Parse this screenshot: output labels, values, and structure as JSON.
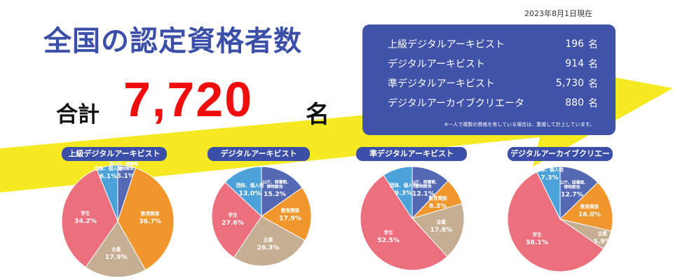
{
  "date": "2023年8月1日現在",
  "title": "全国の認定資格者数",
  "total": {
    "label": "合計",
    "value": "7,720",
    "unit": "名"
  },
  "summary": {
    "rows": [
      {
        "name": "上級デジタルアーキビスト",
        "count": "196",
        "unit": "名"
      },
      {
        "name": "デジタルアーキビスト",
        "count": "914",
        "unit": "名"
      },
      {
        "name": "準デジタルアーキビスト",
        "count": "5,730",
        "unit": "名"
      },
      {
        "name": "デジタルアーカイブクリエータ",
        "count": "880",
        "unit": "名"
      }
    ],
    "note": "※一人で複数の資格を有している場合は、重複して計上しています。"
  },
  "colors": {
    "官公庁、図書館、博物館他": "#5468b4",
    "教育関係": "#f0962c",
    "企業": "#c6ae92",
    "学生": "#ec6f7e",
    "団体、個人他": "#4ba2d8",
    "arrow": "#f5ea21",
    "title": "#3b4ea8",
    "total": "#f00d0d"
  },
  "chart_data": [
    {
      "type": "pie",
      "title": "上級デジタルアーキビスト",
      "unit": "%",
      "slices": [
        {
          "label": "官公庁、図書館、博物館他",
          "value": 5.1
        },
        {
          "label": "教育関係",
          "value": 36.7
        },
        {
          "label": "企業",
          "value": 17.9
        },
        {
          "label": "学生",
          "value": 34.2
        },
        {
          "label": "団体、個人他",
          "value": 6.1
        }
      ]
    },
    {
      "type": "pie",
      "title": "デジタルアーキビスト",
      "unit": "%",
      "slices": [
        {
          "label": "官公庁、図書館、博物館他",
          "value": 15.2
        },
        {
          "label": "教育関係",
          "value": 17.9
        },
        {
          "label": "企業",
          "value": 26.3
        },
        {
          "label": "学生",
          "value": 27.6
        },
        {
          "label": "団体、個人他",
          "value": 13.0
        }
      ]
    },
    {
      "type": "pie",
      "title": "準デジタルアーキビスト",
      "unit": "%",
      "slices": [
        {
          "label": "官公庁、図書館、博物館他",
          "value": 12.1
        },
        {
          "label": "教育関係",
          "value": 8.3
        },
        {
          "label": "企業",
          "value": 17.8
        },
        {
          "label": "学生",
          "value": 52.5
        },
        {
          "label": "団体、個人他",
          "value": 9.3
        }
      ]
    },
    {
      "type": "pie",
      "title": "デジタルアーカイブクリエータ",
      "unit": "%",
      "slices": [
        {
          "label": "官公庁、図書館、博物館他",
          "value": 12.7
        },
        {
          "label": "教育関係",
          "value": 16.0
        },
        {
          "label": "企業",
          "value": 5.9
        },
        {
          "label": "学生",
          "value": 58.1
        },
        {
          "label": "団体、個人他",
          "value": 7.3
        }
      ]
    }
  ]
}
